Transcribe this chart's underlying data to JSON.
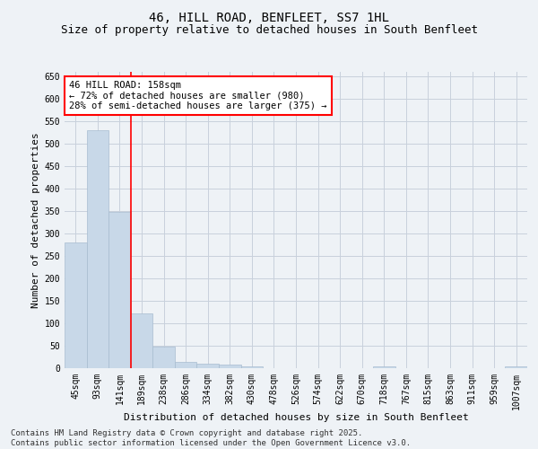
{
  "title": "46, HILL ROAD, BENFLEET, SS7 1HL",
  "subtitle": "Size of property relative to detached houses in South Benfleet",
  "xlabel": "Distribution of detached houses by size in South Benfleet",
  "ylabel": "Number of detached properties",
  "categories": [
    "45sqm",
    "93sqm",
    "141sqm",
    "189sqm",
    "238sqm",
    "286sqm",
    "334sqm",
    "382sqm",
    "430sqm",
    "478sqm",
    "526sqm",
    "574sqm",
    "622sqm",
    "670sqm",
    "718sqm",
    "767sqm",
    "815sqm",
    "863sqm",
    "911sqm",
    "959sqm",
    "1007sqm"
  ],
  "values": [
    280,
    530,
    348,
    123,
    48,
    15,
    10,
    9,
    5,
    0,
    0,
    0,
    0,
    0,
    4,
    0,
    0,
    0,
    0,
    0,
    4
  ],
  "bar_color": "#c8d8e8",
  "bar_edge_color": "#a8bcd0",
  "grid_color": "#c8d0dc",
  "background_color": "#eef2f6",
  "vline_x": 2.5,
  "vline_color": "red",
  "annotation_title": "46 HILL ROAD: 158sqm",
  "annotation_line1": "← 72% of detached houses are smaller (980)",
  "annotation_line2": "28% of semi-detached houses are larger (375) →",
  "annotation_box_color": "white",
  "annotation_box_edgecolor": "red",
  "footer": "Contains HM Land Registry data © Crown copyright and database right 2025.\nContains public sector information licensed under the Open Government Licence v3.0.",
  "ylim": [
    0,
    660
  ],
  "yticks": [
    0,
    50,
    100,
    150,
    200,
    250,
    300,
    350,
    400,
    450,
    500,
    550,
    600,
    650
  ],
  "title_fontsize": 10,
  "subtitle_fontsize": 9,
  "axis_label_fontsize": 8,
  "tick_fontsize": 7,
  "annotation_fontsize": 7.5,
  "footer_fontsize": 6.5
}
